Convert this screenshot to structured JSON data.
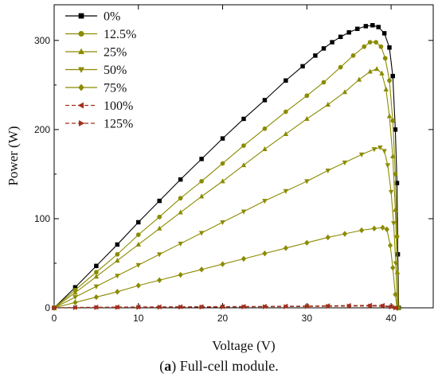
{
  "caption": {
    "tag": "a",
    "text": "Full-cell module."
  },
  "chart_data": {
    "type": "line",
    "xlabel": "Voltage (V)",
    "ylabel": "Power (W)",
    "xlim": [
      0,
      45
    ],
    "ylim": [
      0,
      340
    ],
    "xticks": [
      0,
      10,
      20,
      30,
      40
    ],
    "yticks": [
      0,
      100,
      200,
      300
    ],
    "grid": false,
    "legend_position": "top-left",
    "series": [
      {
        "name": "0%",
        "color": "#000000",
        "marker": "square",
        "line": "solid",
        "points": [
          [
            0,
            0
          ],
          [
            2.5,
            23
          ],
          [
            5,
            47
          ],
          [
            7.5,
            71
          ],
          [
            10,
            96
          ],
          [
            12.5,
            120
          ],
          [
            15,
            144
          ],
          [
            17.5,
            167
          ],
          [
            20,
            190
          ],
          [
            22.5,
            212
          ],
          [
            25,
            233
          ],
          [
            27.5,
            255
          ],
          [
            29.5,
            271
          ],
          [
            31,
            283
          ],
          [
            32,
            291
          ],
          [
            33,
            298
          ],
          [
            34,
            304
          ],
          [
            35,
            309
          ],
          [
            36,
            313
          ],
          [
            37,
            316
          ],
          [
            37.8,
            317
          ],
          [
            38.5,
            315
          ],
          [
            39.2,
            308
          ],
          [
            39.8,
            292
          ],
          [
            40.2,
            260
          ],
          [
            40.5,
            200
          ],
          [
            40.7,
            140
          ],
          [
            40.8,
            60
          ],
          [
            40.9,
            0
          ]
        ]
      },
      {
        "name": "12.5%",
        "color": "#8B8B00",
        "marker": "circle",
        "line": "solid",
        "points": [
          [
            0,
            0
          ],
          [
            2.5,
            20
          ],
          [
            5,
            40
          ],
          [
            7.5,
            60
          ],
          [
            10,
            82
          ],
          [
            12.5,
            102
          ],
          [
            15,
            123
          ],
          [
            17.5,
            142
          ],
          [
            20,
            162
          ],
          [
            22.5,
            182
          ],
          [
            25,
            201
          ],
          [
            27.5,
            220
          ],
          [
            30,
            238
          ],
          [
            32,
            253
          ],
          [
            34,
            270
          ],
          [
            35.5,
            283
          ],
          [
            36.8,
            293
          ],
          [
            37.5,
            298
          ],
          [
            38.2,
            298
          ],
          [
            38.8,
            293
          ],
          [
            39.3,
            280
          ],
          [
            39.8,
            255
          ],
          [
            40.2,
            210
          ],
          [
            40.5,
            150
          ],
          [
            40.7,
            80
          ],
          [
            40.85,
            0
          ]
        ]
      },
      {
        "name": "25%",
        "color": "#8B8B00",
        "marker": "triangle-up",
        "line": "solid",
        "points": [
          [
            0,
            0
          ],
          [
            2.5,
            17
          ],
          [
            5,
            35
          ],
          [
            7.5,
            53
          ],
          [
            10,
            71
          ],
          [
            12.5,
            89
          ],
          [
            15,
            107
          ],
          [
            17.5,
            125
          ],
          [
            20,
            142
          ],
          [
            22.5,
            160
          ],
          [
            25,
            178
          ],
          [
            27.5,
            195
          ],
          [
            30,
            212
          ],
          [
            32.5,
            228
          ],
          [
            34.5,
            242
          ],
          [
            36.2,
            256
          ],
          [
            37.5,
            265
          ],
          [
            38.3,
            268
          ],
          [
            38.9,
            263
          ],
          [
            39.4,
            245
          ],
          [
            39.8,
            215
          ],
          [
            40.2,
            170
          ],
          [
            40.5,
            110
          ],
          [
            40.75,
            40
          ],
          [
            40.85,
            0
          ]
        ]
      },
      {
        "name": "50%",
        "color": "#8B8B00",
        "marker": "triangle-down",
        "line": "solid",
        "points": [
          [
            0,
            0
          ],
          [
            2.5,
            12
          ],
          [
            5,
            24
          ],
          [
            7.5,
            36
          ],
          [
            10,
            48
          ],
          [
            12.5,
            60
          ],
          [
            15,
            72
          ],
          [
            17.5,
            84
          ],
          [
            20,
            96
          ],
          [
            22.5,
            108
          ],
          [
            25,
            120
          ],
          [
            27.5,
            131
          ],
          [
            30,
            142
          ],
          [
            32.5,
            154
          ],
          [
            34.5,
            163
          ],
          [
            36.5,
            172
          ],
          [
            38,
            178
          ],
          [
            38.7,
            180
          ],
          [
            39.2,
            176
          ],
          [
            39.6,
            160
          ],
          [
            40,
            130
          ],
          [
            40.3,
            95
          ],
          [
            40.55,
            50
          ],
          [
            40.75,
            0
          ]
        ]
      },
      {
        "name": "75%",
        "color": "#8B8B00",
        "marker": "diamond",
        "line": "solid",
        "points": [
          [
            0,
            0
          ],
          [
            2.5,
            6
          ],
          [
            5,
            12
          ],
          [
            7.5,
            18
          ],
          [
            10,
            25
          ],
          [
            12.5,
            31
          ],
          [
            15,
            37
          ],
          [
            17.5,
            43
          ],
          [
            20,
            49
          ],
          [
            22.5,
            55
          ],
          [
            25,
            61
          ],
          [
            27.5,
            67
          ],
          [
            30,
            73
          ],
          [
            32.5,
            79
          ],
          [
            34.5,
            83
          ],
          [
            36.5,
            87
          ],
          [
            38,
            89
          ],
          [
            39,
            90
          ],
          [
            39.5,
            88
          ],
          [
            39.9,
            70
          ],
          [
            40.2,
            45
          ],
          [
            40.5,
            15
          ],
          [
            40.7,
            0
          ]
        ]
      },
      {
        "name": "100%",
        "color": "#A0301E",
        "marker": "triangle-left",
        "line": "dashed",
        "points": [
          [
            0,
            0
          ],
          [
            2.5,
            0.5
          ],
          [
            5,
            0.7
          ],
          [
            7.5,
            0.9
          ],
          [
            10,
            1
          ],
          [
            12.5,
            1.1
          ],
          [
            15,
            1.2
          ],
          [
            17.5,
            1.3
          ],
          [
            20,
            1.4
          ],
          [
            22.5,
            1.5
          ],
          [
            25,
            1.6
          ],
          [
            27.5,
            1.8
          ],
          [
            30,
            2
          ],
          [
            32.5,
            2.3
          ],
          [
            35,
            2.6
          ],
          [
            37.5,
            2.8
          ],
          [
            39,
            2.6
          ],
          [
            40,
            1.5
          ],
          [
            40.6,
            0
          ]
        ]
      },
      {
        "name": "125%",
        "color": "#A0301E",
        "marker": "triangle-right",
        "line": "dashed",
        "points": [
          [
            0,
            0
          ],
          [
            2.5,
            0.3
          ],
          [
            5,
            0.4
          ],
          [
            7.5,
            0.5
          ],
          [
            10,
            0.6
          ],
          [
            12.5,
            0.7
          ],
          [
            15,
            0.8
          ],
          [
            17.5,
            0.9
          ],
          [
            20,
            1
          ],
          [
            22.5,
            1.1
          ],
          [
            25,
            1.2
          ],
          [
            27.5,
            1.3
          ],
          [
            30,
            1.5
          ],
          [
            32.5,
            1.7
          ],
          [
            35,
            1.9
          ],
          [
            37.5,
            2
          ],
          [
            39,
            1.8
          ],
          [
            40,
            1
          ],
          [
            40.5,
            0
          ]
        ]
      }
    ]
  }
}
